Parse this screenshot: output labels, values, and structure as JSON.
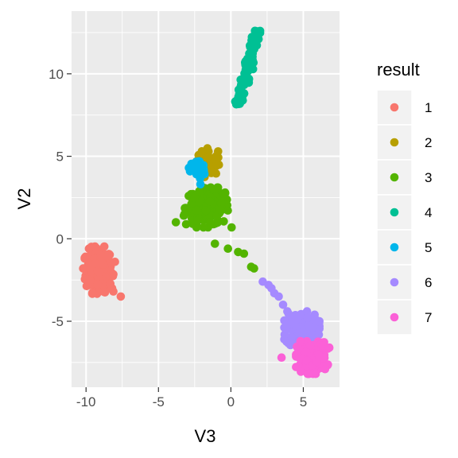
{
  "chart_data": {
    "type": "scatter",
    "title": "",
    "xlabel": "V3",
    "ylabel": "V2",
    "xlim": [
      -11,
      7.5
    ],
    "ylim": [
      -9,
      13.8
    ],
    "x_ticks": [
      -10,
      -5,
      0,
      5
    ],
    "x_tick_labels": [
      "-10",
      "-5",
      "0",
      "5"
    ],
    "y_ticks": [
      -5,
      0,
      5,
      10
    ],
    "y_tick_labels": [
      "-5",
      "0",
      "5",
      "10"
    ],
    "grid": true,
    "legend": {
      "title": "result",
      "placement": "right"
    },
    "series": [
      {
        "name": "1",
        "color": "#F8766D",
        "cluster": {
          "cx": -9.1,
          "cy": -1.9,
          "sx": 0.45,
          "sy": 0.65,
          "n": 200
        },
        "points": [
          [
            -7.6,
            -3.5
          ],
          [
            -8.2,
            -3.0
          ],
          [
            -9.8,
            -0.6
          ],
          [
            -10.2,
            -1.8
          ],
          [
            -8.0,
            -1.4
          ]
        ]
      },
      {
        "name": "2",
        "color": "#B79F00",
        "cluster": {
          "cx": -1.6,
          "cy": 4.6,
          "sx": 0.35,
          "sy": 0.4,
          "n": 50
        },
        "points": [
          [
            -2.0,
            5.3
          ],
          [
            -1.2,
            4.1
          ],
          [
            -1.0,
            4.5
          ]
        ]
      },
      {
        "name": "3",
        "color": "#53B400",
        "cluster": {
          "cx": -1.6,
          "cy": 1.9,
          "sx": 0.75,
          "sy": 0.55,
          "n": 180
        },
        "points": [
          [
            -3.8,
            1.0
          ],
          [
            -1.1,
            -0.3
          ],
          [
            -0.2,
            -0.6
          ],
          [
            0.5,
            -0.8
          ],
          [
            0.9,
            -0.9
          ],
          [
            1.4,
            -1.7
          ],
          [
            1.6,
            -1.8
          ],
          [
            -2.5,
            2.5
          ],
          [
            -0.4,
            2.8
          ],
          [
            -3.2,
            1.5
          ]
        ]
      },
      {
        "name": "4",
        "color": "#00C094",
        "line": {
          "x0": 0.5,
          "y0": 8.1,
          "x1": 1.8,
          "y1": 12.6,
          "n": 120,
          "jitter": 0.12
        },
        "points": []
      },
      {
        "name": "5",
        "color": "#00B6EB",
        "cluster": {
          "cx": -2.3,
          "cy": 4.2,
          "sx": 0.25,
          "sy": 0.3,
          "n": 45
        },
        "points": [
          [
            -2.9,
            4.3
          ],
          [
            -2.1,
            3.3
          ]
        ]
      },
      {
        "name": "6",
        "color": "#A58AFF",
        "cluster": {
          "cx": 4.9,
          "cy": -5.5,
          "sx": 0.55,
          "sy": 0.5,
          "n": 200
        },
        "points": [
          [
            2.2,
            -2.6
          ],
          [
            2.6,
            -2.8
          ],
          [
            3.0,
            -3.3
          ],
          [
            3.3,
            -3.5
          ],
          [
            2.8,
            -3.0
          ],
          [
            3.6,
            -4.0
          ],
          [
            3.9,
            -4.4
          ]
        ]
      },
      {
        "name": "7",
        "color": "#FB61D7",
        "cluster": {
          "cx": 5.6,
          "cy": -7.2,
          "sx": 0.5,
          "sy": 0.45,
          "n": 200
        },
        "points": [
          [
            3.5,
            -7.2
          ],
          [
            6.8,
            -6.6
          ],
          [
            6.5,
            -7.9
          ]
        ]
      }
    ]
  }
}
